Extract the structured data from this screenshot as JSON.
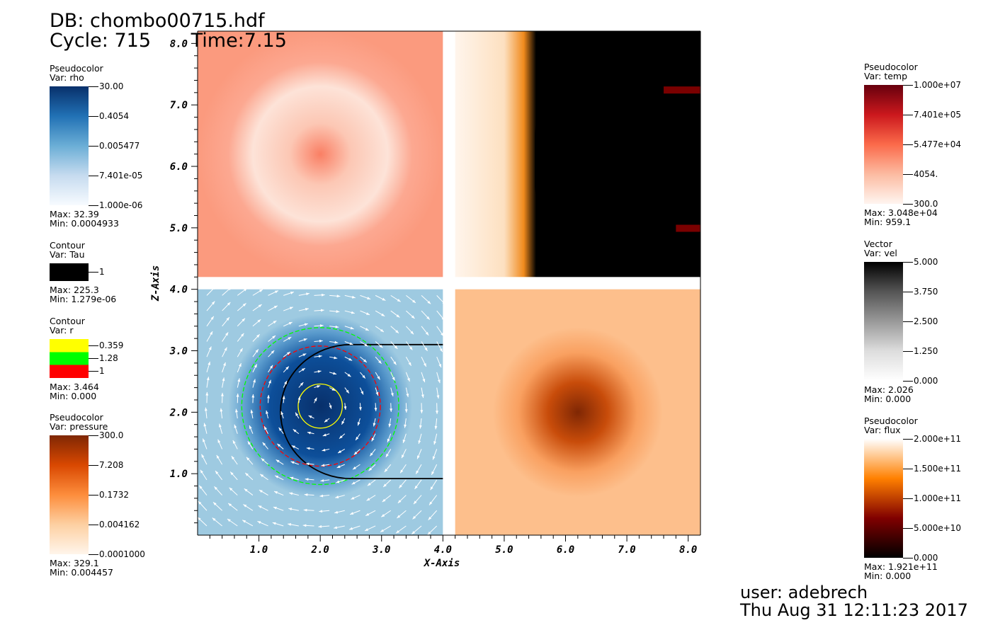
{
  "header": {
    "db": "DB: chombo00715.hdf",
    "cycle": "Cycle: 715",
    "time": "Time:7.15"
  },
  "legends_left": [
    {
      "type": "Pseudocolor",
      "var": "Var: rho",
      "ticks": [
        "30.00",
        "0.4054",
        "0.005477",
        "7.401e-05",
        "1.000e-06"
      ],
      "max": "Max:  32.39",
      "min": "Min:  0.0004933",
      "colors": [
        "#08306b",
        "#2171b5",
        "#6baed6",
        "#c6dbef",
        "#f7fbff"
      ]
    },
    {
      "type": "Contour",
      "var": "Var: Tau",
      "ticks": [
        "1"
      ],
      "max": "Max:  225.3",
      "min": "Min:  1.279e-06",
      "colors": [
        "#000000"
      ]
    },
    {
      "type": "Contour",
      "var": "Var: r",
      "ticks": [
        "0.359",
        "1.28",
        "1"
      ],
      "max": "Max:  3.464",
      "min": "Min:  0.000",
      "colors": [
        "#ffff00",
        "#00ff00",
        "#ff0000"
      ]
    },
    {
      "type": "Pseudocolor",
      "var": "Var: pressure",
      "ticks": [
        "300.0",
        "7.208",
        "0.1732",
        "0.004162",
        "0.0001000"
      ],
      "max": "Max:  329.1",
      "min": "Min:  0.004457",
      "colors": [
        "#7f2704",
        "#d94801",
        "#fd8d3c",
        "#fdd0a2",
        "#fff5eb"
      ]
    }
  ],
  "legends_right": [
    {
      "type": "Pseudocolor",
      "var": "Var: temp",
      "ticks": [
        "1.000e+07",
        "7.401e+05",
        "5.477e+04",
        "4054.",
        "300.0"
      ],
      "max": "Max:  3.048e+04",
      "min": "Min:  959.1",
      "colors": [
        "#67000d",
        "#cb181d",
        "#fb6a4a",
        "#fcbba1",
        "#fff5f0"
      ]
    },
    {
      "type": "Vector",
      "var": "Var: vel",
      "ticks": [
        "5.000",
        "3.750",
        "2.500",
        "1.250",
        "0.000"
      ],
      "max": "Max:  2.026",
      "min": "Min:  0.000",
      "colors": [
        "#000000",
        "#555555",
        "#999999",
        "#dddddd",
        "#ffffff"
      ]
    },
    {
      "type": "Pseudocolor",
      "var": "Var: flux",
      "ticks": [
        "2.000e+11",
        "1.500e+11",
        "1.000e+11",
        "5.000e+10",
        "0.000"
      ],
      "max": "Max:  1.921e+11",
      "min": "Min:  0.000",
      "colors": [
        "#ffffff",
        "#ff8000",
        "#800000",
        "#000000"
      ]
    }
  ],
  "chart_data": {
    "type": "heatmap",
    "xlabel": "X-Axis",
    "ylabel": "Z-Axis",
    "xlim": [
      0,
      8.2
    ],
    "ylim": [
      0,
      8.2
    ],
    "xticks": [
      "1.0",
      "2.0",
      "3.0",
      "4.0",
      "5.0",
      "6.0",
      "7.0",
      "8.0"
    ],
    "yticks": [
      "1.0",
      "2.0",
      "3.0",
      "4.0",
      "5.0",
      "6.0",
      "7.0",
      "8.0"
    ],
    "contours_r": [
      {
        "level": 0.359,
        "color": "#ffff00"
      },
      {
        "level": 1.28,
        "color": "#00ff00"
      },
      {
        "level": 1,
        "color": "#ff0000"
      }
    ],
    "vortex_center": [
      2.0,
      2.1
    ]
  },
  "footer": {
    "user": "user: adebrech",
    "date": "Thu Aug 31 12:11:23 2017"
  }
}
